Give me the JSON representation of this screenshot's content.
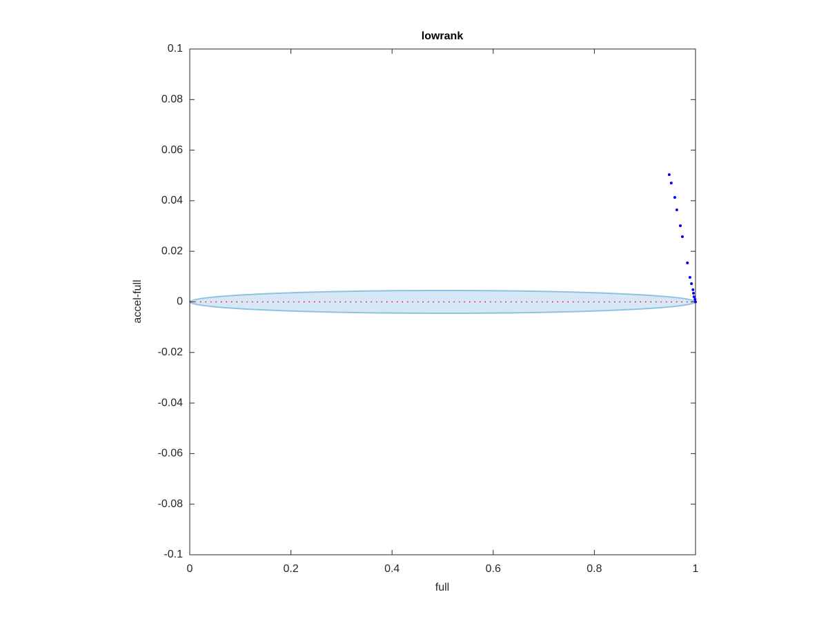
{
  "chart_data": {
    "type": "scatter",
    "title": "lowrank",
    "xlabel": "full",
    "ylabel": "accel-full",
    "xlim": [
      0,
      1
    ],
    "ylim": [
      -0.1,
      0.1
    ],
    "xticks": [
      0,
      0.2,
      0.4,
      0.6,
      0.8,
      1
    ],
    "yticks": [
      -0.1,
      -0.08,
      -0.06,
      -0.04,
      -0.02,
      0,
      0.02,
      0.04,
      0.06,
      0.08,
      0.1
    ],
    "grid": false,
    "ellipse": {
      "center": [
        0.5,
        0
      ],
      "radii": [
        0.5,
        0.0045
      ],
      "fill": "#d6e7f5",
      "edge": "#8ec2e0"
    },
    "hline": {
      "value": 0,
      "color": "#ff0000",
      "style": "dotted"
    },
    "series": [
      {
        "color": "#0000ff",
        "x": [
          0.948,
          0.952,
          0.959,
          0.963,
          0.97,
          0.974,
          0.984,
          0.989,
          0.992,
          0.995,
          0.996,
          0.997,
          0.999,
          1
        ],
        "values": [
          0.0503,
          0.047,
          0.0413,
          0.0364,
          0.0301,
          0.0258,
          0.0154,
          0.0097,
          0.0072,
          0.0048,
          0.0034,
          0.002,
          0.001,
          0
        ]
      }
    ]
  }
}
